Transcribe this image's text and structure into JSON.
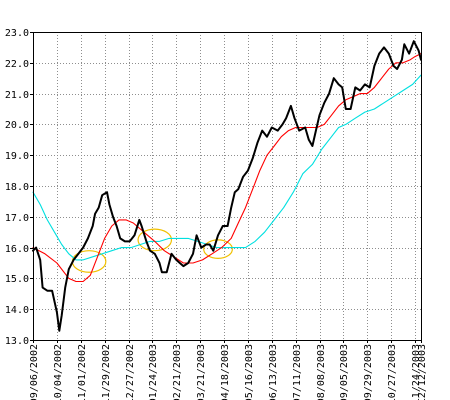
{
  "chart_data": {
    "type": "line",
    "x_categories": [
      "09/06/2002",
      "10/04/2002",
      "11/01/2002",
      "11/29/2002",
      "12/27/2002",
      "01/24/2003",
      "02/21/2003",
      "03/21/2003",
      "04/18/2003",
      "05/16/2003",
      "06/13/2003",
      "07/11/2003",
      "08/08/2003",
      "09/05/2003",
      "09/29/2003",
      "10/27/2003",
      "11/24/2003",
      "12/12/2003"
    ],
    "ylim": [
      13.0,
      23.0
    ],
    "y_ticks": [
      "13.0",
      "14.0",
      "15.0",
      "16.0",
      "17.0",
      "18.0",
      "19.0",
      "20.0",
      "21.0",
      "22.0",
      "23.0"
    ],
    "grid": true,
    "series": [
      {
        "color": "#000000",
        "values": [
          [
            0,
            15.9
          ],
          [
            0.13,
            16.0
          ],
          [
            0.3,
            15.6
          ],
          [
            0.4,
            14.7
          ],
          [
            0.6,
            14.6
          ],
          [
            0.8,
            14.6
          ],
          [
            1.0,
            13.9
          ],
          [
            1.1,
            13.3
          ],
          [
            1.2,
            13.8
          ],
          [
            1.35,
            14.7
          ],
          [
            1.5,
            15.3
          ],
          [
            1.7,
            15.6
          ],
          [
            1.9,
            15.8
          ],
          [
            2.1,
            16.0
          ],
          [
            2.3,
            16.3
          ],
          [
            2.5,
            16.7
          ],
          [
            2.6,
            17.1
          ],
          [
            2.75,
            17.3
          ],
          [
            2.9,
            17.7
          ],
          [
            3.1,
            17.8
          ],
          [
            3.2,
            17.4
          ],
          [
            3.35,
            17.0
          ],
          [
            3.5,
            16.7
          ],
          [
            3.65,
            16.3
          ],
          [
            3.85,
            16.2
          ],
          [
            4.05,
            16.2
          ],
          [
            4.25,
            16.4
          ],
          [
            4.45,
            16.9
          ],
          [
            4.55,
            16.7
          ],
          [
            4.75,
            16.2
          ],
          [
            4.9,
            15.9
          ],
          [
            5.1,
            15.8
          ],
          [
            5.3,
            15.5
          ],
          [
            5.4,
            15.2
          ],
          [
            5.6,
            15.2
          ],
          [
            5.8,
            15.8
          ],
          [
            6.0,
            15.6
          ],
          [
            6.15,
            15.5
          ],
          [
            6.3,
            15.4
          ],
          [
            6.5,
            15.5
          ],
          [
            6.7,
            15.8
          ],
          [
            6.85,
            16.4
          ],
          [
            7.05,
            16.0
          ],
          [
            7.25,
            16.1
          ],
          [
            7.4,
            16.1
          ],
          [
            7.55,
            15.9
          ],
          [
            7.75,
            16.4
          ],
          [
            7.95,
            16.7
          ],
          [
            8.15,
            16.7
          ],
          [
            8.3,
            17.3
          ],
          [
            8.45,
            17.8
          ],
          [
            8.6,
            17.9
          ],
          [
            8.8,
            18.3
          ],
          [
            9.0,
            18.5
          ],
          [
            9.2,
            18.9
          ],
          [
            9.4,
            19.4
          ],
          [
            9.6,
            19.8
          ],
          [
            9.8,
            19.6
          ],
          [
            10.0,
            19.9
          ],
          [
            10.25,
            19.8
          ],
          [
            10.45,
            20.0
          ],
          [
            10.6,
            20.2
          ],
          [
            10.8,
            20.6
          ],
          [
            10.95,
            20.2
          ],
          [
            11.15,
            19.8
          ],
          [
            11.4,
            19.9
          ],
          [
            11.55,
            19.5
          ],
          [
            11.7,
            19.3
          ],
          [
            11.85,
            19.8
          ],
          [
            12.0,
            20.3
          ],
          [
            12.2,
            20.7
          ],
          [
            12.4,
            21.0
          ],
          [
            12.6,
            21.5
          ],
          [
            12.8,
            21.3
          ],
          [
            12.95,
            21.2
          ],
          [
            13.1,
            20.5
          ],
          [
            13.3,
            20.5
          ],
          [
            13.5,
            21.2
          ],
          [
            13.7,
            21.1
          ],
          [
            13.9,
            21.3
          ],
          [
            14.1,
            21.2
          ],
          [
            14.3,
            21.9
          ],
          [
            14.5,
            22.3
          ],
          [
            14.7,
            22.5
          ],
          [
            14.9,
            22.3
          ],
          [
            15.1,
            21.9
          ],
          [
            15.25,
            21.8
          ],
          [
            15.45,
            22.1
          ],
          [
            15.55,
            22.6
          ],
          [
            15.75,
            22.3
          ],
          [
            15.95,
            22.7
          ],
          [
            16.15,
            22.4
          ],
          [
            16.25,
            22.1
          ]
        ]
      },
      {
        "color": "#ff0000",
        "values": [
          [
            0,
            16.0
          ],
          [
            0.5,
            15.8
          ],
          [
            1.0,
            15.5
          ],
          [
            1.5,
            15.0
          ],
          [
            1.8,
            14.9
          ],
          [
            2.1,
            14.9
          ],
          [
            2.4,
            15.1
          ],
          [
            2.7,
            15.7
          ],
          [
            3.0,
            16.3
          ],
          [
            3.3,
            16.7
          ],
          [
            3.6,
            16.9
          ],
          [
            3.9,
            16.9
          ],
          [
            4.2,
            16.8
          ],
          [
            4.5,
            16.6
          ],
          [
            4.8,
            16.4
          ],
          [
            5.1,
            16.2
          ],
          [
            5.5,
            15.9
          ],
          [
            5.9,
            15.7
          ],
          [
            6.3,
            15.5
          ],
          [
            6.7,
            15.5
          ],
          [
            7.1,
            15.6
          ],
          [
            7.5,
            15.8
          ],
          [
            7.9,
            16.0
          ],
          [
            8.3,
            16.3
          ],
          [
            8.6,
            16.8
          ],
          [
            8.9,
            17.3
          ],
          [
            9.2,
            17.9
          ],
          [
            9.5,
            18.5
          ],
          [
            9.8,
            19.0
          ],
          [
            10.1,
            19.3
          ],
          [
            10.4,
            19.6
          ],
          [
            10.7,
            19.8
          ],
          [
            11.0,
            19.9
          ],
          [
            11.3,
            19.9
          ],
          [
            11.6,
            19.9
          ],
          [
            11.9,
            19.9
          ],
          [
            12.2,
            20.0
          ],
          [
            12.5,
            20.3
          ],
          [
            12.8,
            20.6
          ],
          [
            13.1,
            20.8
          ],
          [
            13.4,
            20.9
          ],
          [
            13.7,
            21.0
          ],
          [
            14.0,
            21.0
          ],
          [
            14.3,
            21.2
          ],
          [
            14.6,
            21.5
          ],
          [
            14.9,
            21.8
          ],
          [
            15.2,
            22.0
          ],
          [
            15.5,
            22.0
          ],
          [
            15.8,
            22.1
          ],
          [
            16.0,
            22.2
          ],
          [
            16.25,
            22.3
          ]
        ]
      },
      {
        "color": "#00e0e0",
        "values": [
          [
            0,
            17.8
          ],
          [
            0.3,
            17.4
          ],
          [
            0.6,
            16.9
          ],
          [
            0.9,
            16.5
          ],
          [
            1.2,
            16.1
          ],
          [
            1.5,
            15.8
          ],
          [
            1.8,
            15.6
          ],
          [
            2.1,
            15.6
          ],
          [
            2.5,
            15.7
          ],
          [
            2.9,
            15.8
          ],
          [
            3.3,
            15.9
          ],
          [
            3.7,
            16.0
          ],
          [
            4.1,
            16.0
          ],
          [
            4.5,
            16.1
          ],
          [
            4.9,
            16.2
          ],
          [
            5.3,
            16.2
          ],
          [
            5.7,
            16.3
          ],
          [
            6.1,
            16.3
          ],
          [
            6.5,
            16.3
          ],
          [
            6.9,
            16.2
          ],
          [
            7.3,
            16.1
          ],
          [
            7.7,
            16.0
          ],
          [
            8.1,
            16.0
          ],
          [
            8.5,
            16.0
          ],
          [
            8.9,
            16.0
          ],
          [
            9.3,
            16.2
          ],
          [
            9.7,
            16.5
          ],
          [
            10.1,
            16.9
          ],
          [
            10.5,
            17.3
          ],
          [
            10.9,
            17.8
          ],
          [
            11.3,
            18.4
          ],
          [
            11.7,
            18.7
          ],
          [
            12.1,
            19.2
          ],
          [
            12.5,
            19.6
          ],
          [
            12.8,
            19.9
          ],
          [
            13.1,
            20.0
          ],
          [
            13.5,
            20.2
          ],
          [
            13.9,
            20.4
          ],
          [
            14.3,
            20.5
          ],
          [
            14.7,
            20.7
          ],
          [
            15.1,
            20.9
          ],
          [
            15.5,
            21.1
          ],
          [
            15.9,
            21.3
          ],
          [
            16.25,
            21.6
          ]
        ]
      }
    ],
    "annotations": [
      {
        "shape": "ellipse",
        "color": "#f0c000",
        "cx": 2.35,
        "cy": 15.55,
        "rx": 0.7,
        "ry": 0.35
      },
      {
        "shape": "ellipse",
        "color": "#f0c000",
        "cx": 5.1,
        "cy": 16.25,
        "rx": 0.7,
        "ry": 0.35
      },
      {
        "shape": "ellipse",
        "color": "#f0c000",
        "cx": 7.75,
        "cy": 15.95,
        "rx": 0.6,
        "ry": 0.3
      }
    ]
  }
}
